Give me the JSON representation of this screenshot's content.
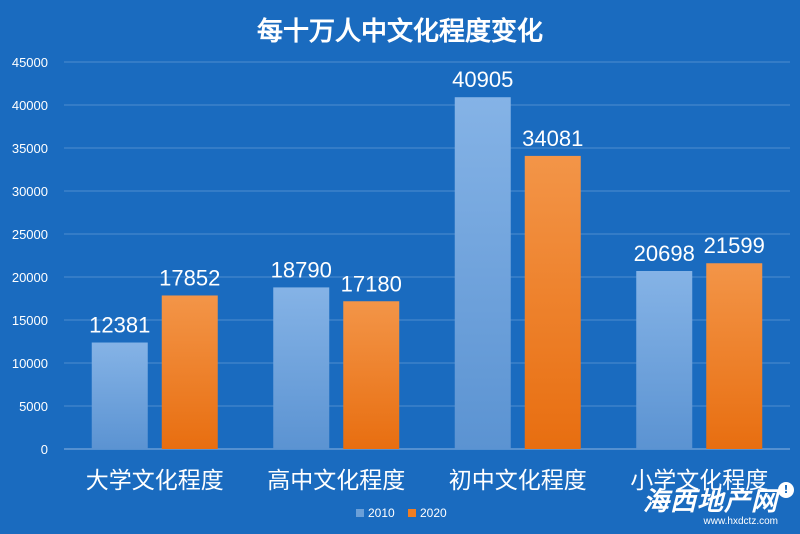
{
  "chart_data": {
    "type": "bar",
    "title": "每十万人中文化程度变化",
    "categories": [
      "大学文化程度",
      "高中文化程度",
      "初中文化程度",
      "小学文化程度"
    ],
    "series": [
      {
        "name": "2010",
        "values": [
          12381,
          18790,
          40905,
          20698
        ],
        "color": "#6a9fd8"
      },
      {
        "name": "2020",
        "values": [
          17852,
          17180,
          34081,
          21599
        ],
        "color": "#ef7d22"
      }
    ],
    "y_ticks": [
      0,
      5000,
      10000,
      15000,
      20000,
      25000,
      30000,
      35000,
      40000,
      45000
    ],
    "ylim": [
      0,
      45000
    ],
    "grid": true,
    "legend_position": "bottom"
  },
  "watermark": {
    "logo": "海西地产网",
    "url": "www.hxdctz.com"
  }
}
